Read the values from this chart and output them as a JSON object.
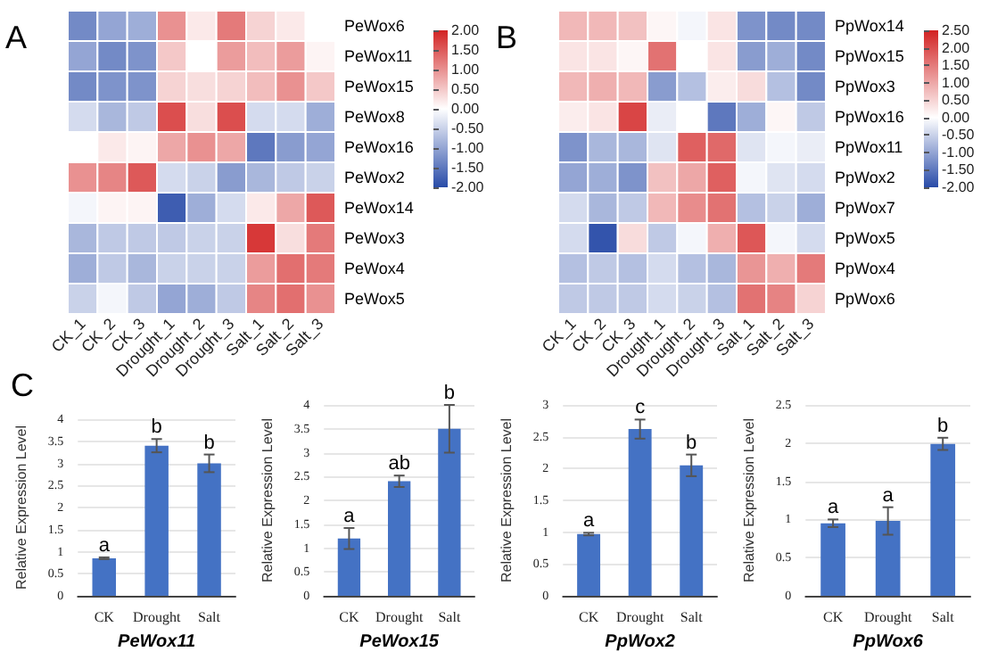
{
  "chart_data": [
    {
      "type": "heatmap",
      "annotations": [
        "A"
      ],
      "categories": [
        "CK_1",
        "CK_2",
        "CK_3",
        "Drought_1",
        "Drought_2",
        "Drought_3",
        "Salt_1",
        "Salt_2",
        "Salt_3"
      ],
      "y_categories": [
        "PeWox6",
        "PeWox11",
        "PeWox15",
        "PeWox8",
        "PeWox16",
        "PeWox2",
        "PeWox14",
        "PeWox3",
        "PeWox4",
        "PeWox5"
      ],
      "cells": [
        [
          -1.3,
          -1.0,
          -0.9,
          1.0,
          0.2,
          1.2,
          0.4,
          0.2,
          0.0
        ],
        [
          -1.0,
          -1.3,
          -1.2,
          0.5,
          0.0,
          0.9,
          0.6,
          0.9,
          0.1
        ],
        [
          -1.3,
          -1.2,
          -1.2,
          0.4,
          0.3,
          0.4,
          0.6,
          1.0,
          0.5
        ],
        [
          -0.4,
          -0.8,
          -0.6,
          1.6,
          0.3,
          1.6,
          -0.4,
          -0.4,
          -0.9
        ],
        [
          0.0,
          0.2,
          0.1,
          0.8,
          1.0,
          0.8,
          -1.5,
          -1.1,
          -1.0
        ],
        [
          1.0,
          1.1,
          1.5,
          -0.4,
          -0.5,
          -1.1,
          -0.8,
          -0.6,
          -0.5
        ],
        [
          -0.1,
          0.1,
          0.1,
          -1.8,
          -0.9,
          -0.4,
          0.2,
          0.8,
          1.5
        ],
        [
          -0.8,
          -0.6,
          -0.6,
          -0.6,
          -0.5,
          -0.5,
          1.8,
          0.3,
          1.2
        ],
        [
          -0.9,
          -0.6,
          -0.8,
          -0.5,
          -0.5,
          -0.5,
          0.9,
          1.3,
          1.2
        ],
        [
          -0.5,
          -0.1,
          -0.6,
          -1.0,
          -0.9,
          -0.6,
          1.1,
          1.3,
          1.0
        ]
      ],
      "clim": [
        -2,
        2
      ],
      "cticks": [
        {
          "value": 2,
          "label": "2.00"
        },
        {
          "value": 1.5,
          "label": "1.50"
        },
        {
          "value": 1,
          "label": "1.00"
        },
        {
          "value": 0.5,
          "label": "0.50"
        },
        {
          "value": 0,
          "label": "0.00"
        },
        {
          "value": -0.5,
          "label": "-0.50"
        },
        {
          "value": -1,
          "label": "-1.00"
        },
        {
          "value": -1.5,
          "label": "-1.50"
        },
        {
          "value": -2,
          "label": "-2.00"
        }
      ]
    },
    {
      "type": "heatmap",
      "annotations": [
        "B"
      ],
      "categories": [
        "CK_1",
        "CK_2",
        "CK_3",
        "Drought_1",
        "Drought_2",
        "Drought_3",
        "Salt_1",
        "Salt_2",
        "Salt_3"
      ],
      "y_categories": [
        "PpWox14",
        "PpWox15",
        "PpWox3",
        "PpWox16",
        "PpWox11",
        "PpWox2",
        "PpWox7",
        "PpWox5",
        "PpWox4",
        "PpWox6"
      ],
      "cells": [
        [
          0.8,
          0.8,
          0.7,
          0.1,
          -0.1,
          0.3,
          -1.2,
          -1.3,
          -1.3
        ],
        [
          0.3,
          0.3,
          0.1,
          1.6,
          0.0,
          0.3,
          -1.1,
          -0.9,
          -1.3
        ],
        [
          0.8,
          0.9,
          0.8,
          -1.1,
          -0.7,
          0.2,
          0.4,
          -0.7,
          -1.3
        ],
        [
          0.2,
          0.3,
          2.1,
          -0.2,
          0.0,
          -1.5,
          -0.9,
          0.1,
          -0.6
        ],
        [
          -1.2,
          -0.8,
          -0.8,
          -0.3,
          1.8,
          1.7,
          -0.3,
          -0.1,
          -0.2
        ],
        [
          -1.0,
          -0.9,
          -1.2,
          0.7,
          1.0,
          1.8,
          -0.1,
          -0.3,
          -0.4
        ],
        [
          -0.4,
          -0.8,
          -0.6,
          0.8,
          1.3,
          1.6,
          -0.7,
          -0.5,
          -0.9
        ],
        [
          -0.4,
          -1.9,
          0.4,
          -0.6,
          -0.1,
          0.9,
          1.9,
          -0.1,
          -0.4
        ],
        [
          -0.7,
          -0.6,
          -0.7,
          -0.4,
          -0.7,
          -0.8,
          1.2,
          0.9,
          1.5
        ],
        [
          -0.6,
          -0.6,
          -0.6,
          -0.4,
          -0.5,
          -0.7,
          1.6,
          1.4,
          0.5
        ]
      ],
      "clim": [
        -2,
        2.5
      ],
      "cticks": [
        {
          "value": 2.5,
          "label": "2.50"
        },
        {
          "value": 2,
          "label": "2.00"
        },
        {
          "value": 1.5,
          "label": "1.50"
        },
        {
          "value": 1,
          "label": "1.00"
        },
        {
          "value": 0.5,
          "label": "0.50"
        },
        {
          "value": 0,
          "label": "0.00"
        },
        {
          "value": -0.5,
          "label": "-0.50"
        },
        {
          "value": -1,
          "label": "-1.00"
        },
        {
          "value": -1.5,
          "label": "-1.50"
        },
        {
          "value": -2,
          "label": "-2.00"
        }
      ]
    },
    {
      "type": "bar",
      "xlabel": "PeWox11",
      "ylabel": "Relative Expression Level",
      "categories": [
        "CK",
        "Drought",
        "Salt"
      ],
      "values": [
        0.85,
        3.4,
        3.0
      ],
      "errors": [
        0.02,
        0.15,
        0.2
      ],
      "color": "#4472c4",
      "ylim": [
        0,
        4
      ],
      "yticks": [
        0,
        0.5,
        1,
        1.5,
        2,
        2.5,
        3,
        3.5,
        4
      ],
      "grid": "y",
      "annotations": [
        "C",
        {
          "text": "a",
          "x": "CK",
          "y": 0.87
        },
        {
          "text": "b",
          "x": "Drought",
          "y": 3.55
        },
        {
          "text": "b",
          "x": "Salt",
          "y": 3.2
        }
      ]
    },
    {
      "type": "bar",
      "xlabel": "PeWox15",
      "ylabel": "Relative Expression Level",
      "categories": [
        "CK",
        "Drought",
        "Salt"
      ],
      "values": [
        1.2,
        2.4,
        3.5
      ],
      "errors": [
        0.22,
        0.12,
        0.5
      ],
      "color": "#4472c4",
      "ylim": [
        0,
        4
      ],
      "yticks": [
        0,
        0.5,
        1,
        1.5,
        2,
        2.5,
        3,
        3.5,
        4
      ],
      "grid": "y",
      "annotations": [
        {
          "text": "a",
          "x": "CK",
          "y": 1.42
        },
        {
          "text": "ab",
          "x": "Drought",
          "y": 2.52
        },
        {
          "text": "b",
          "x": "Salt",
          "y": 4.0
        }
      ]
    },
    {
      "type": "bar",
      "xlabel": "PpWox2",
      "ylabel": "Relative Expression Level",
      "categories": [
        "CK",
        "Drought",
        "Salt"
      ],
      "values": [
        0.97,
        2.62,
        2.05
      ],
      "errors": [
        0.02,
        0.15,
        0.17
      ],
      "color": "#4472c4",
      "ylim": [
        0,
        3
      ],
      "yticks": [
        0,
        0.5,
        1,
        1.5,
        2,
        2.5,
        3
      ],
      "grid": "y",
      "annotations": [
        {
          "text": "a",
          "x": "CK",
          "y": 0.99
        },
        {
          "text": "c",
          "x": "Drought",
          "y": 2.77
        },
        {
          "text": "b",
          "x": "Salt",
          "y": 2.22
        }
      ]
    },
    {
      "type": "bar",
      "xlabel": "PpWox6",
      "ylabel": "Relative Expression Level",
      "categories": [
        "CK",
        "Drought",
        "Salt"
      ],
      "values": [
        0.95,
        0.98,
        1.99
      ],
      "errors": [
        0.05,
        0.18,
        0.08
      ],
      "color": "#4472c4",
      "ylim": [
        0,
        2.5
      ],
      "yticks": [
        0,
        0.5,
        1,
        1.5,
        2,
        2.5
      ],
      "grid": "y",
      "annotations": [
        {
          "text": "a",
          "x": "CK",
          "y": 1.0
        },
        {
          "text": "a",
          "x": "Drought",
          "y": 1.16
        },
        {
          "text": "b",
          "x": "Salt",
          "y": 2.07
        }
      ]
    }
  ]
}
